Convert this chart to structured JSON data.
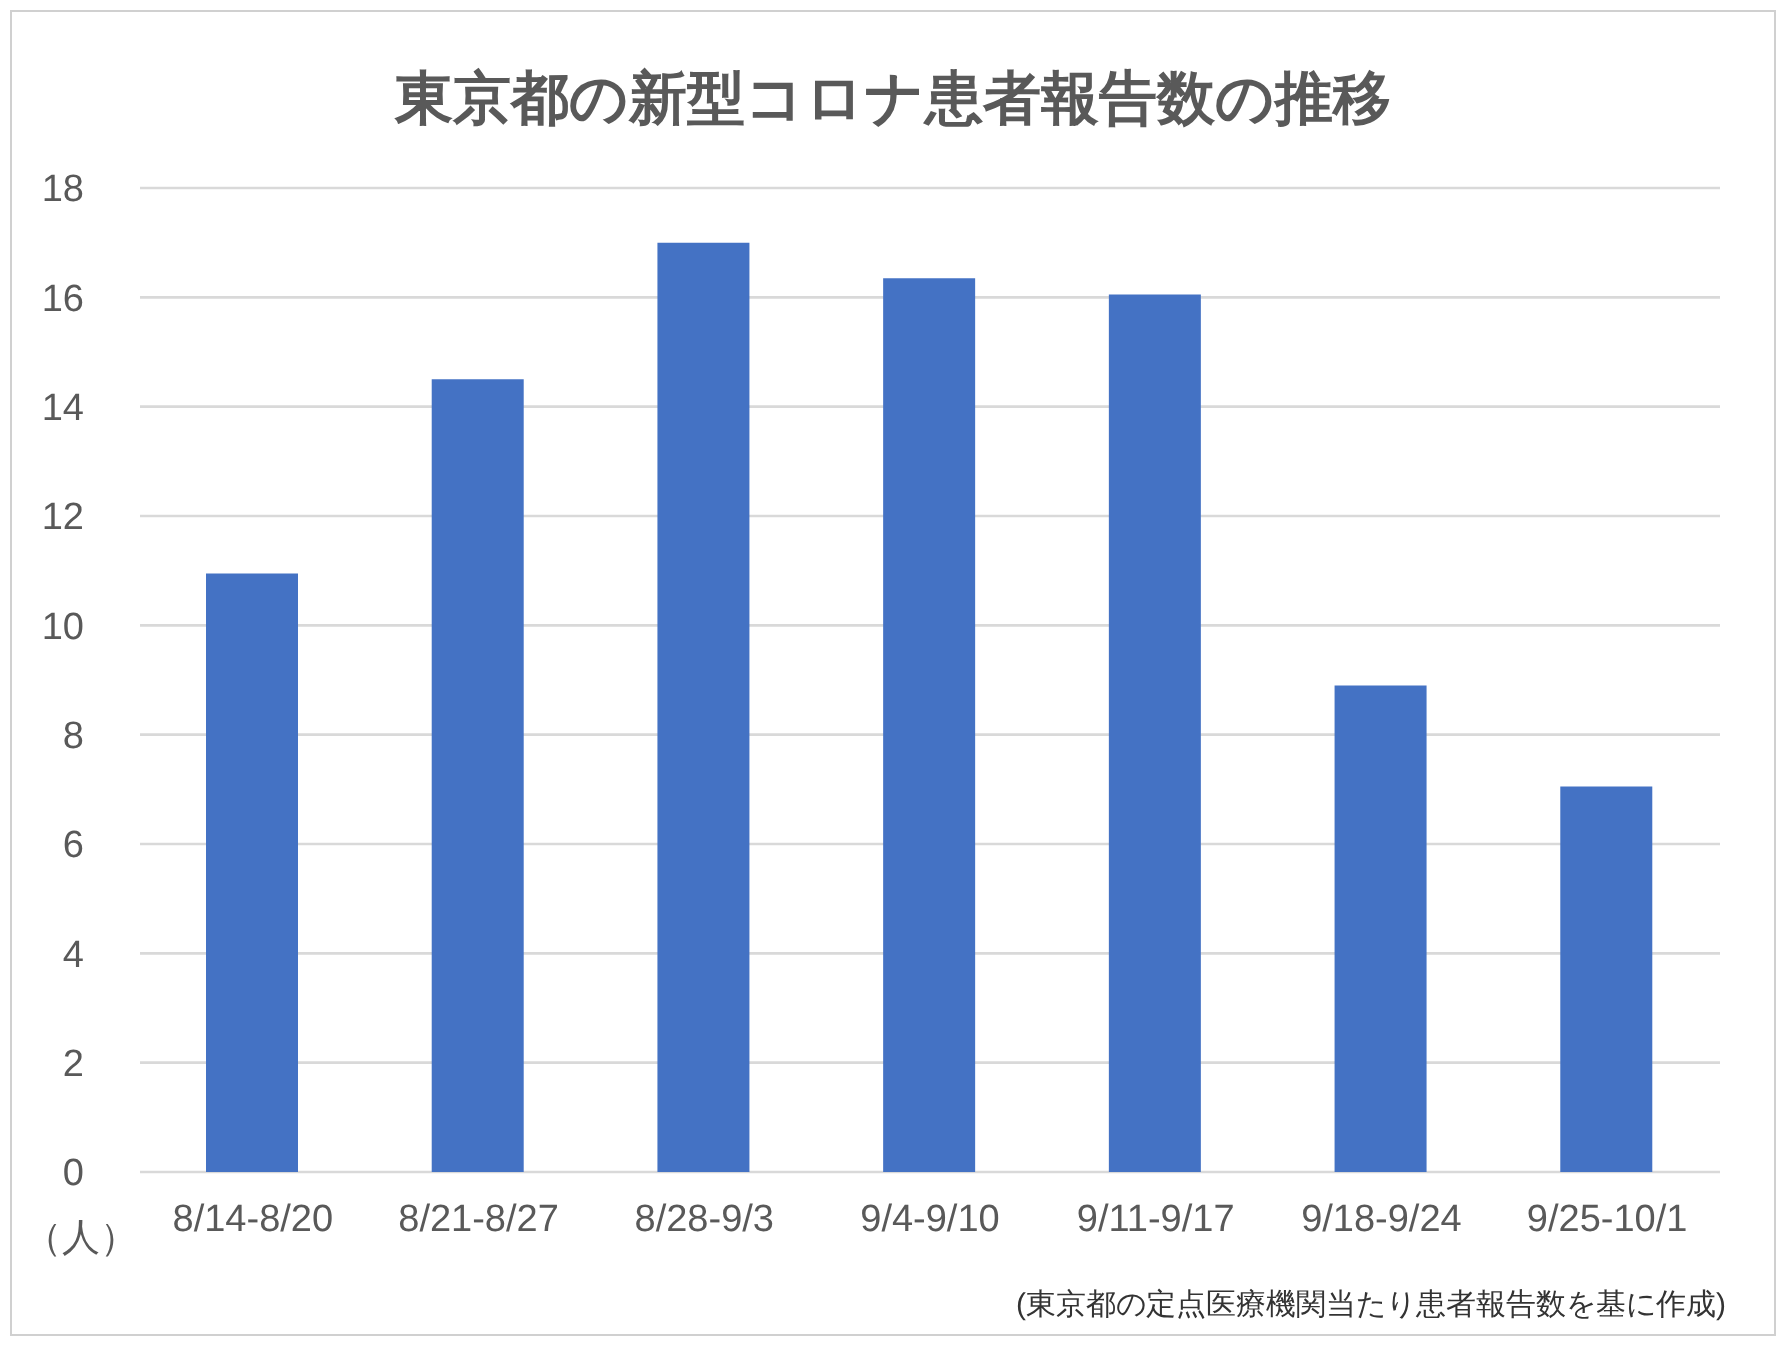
{
  "chart_data": {
    "type": "bar",
    "title": "東京都の新型コロナ患者報告数の推移",
    "ylabel": "（人）",
    "categories": [
      "8/14-8/20",
      "8/21-8/27",
      "8/28-9/3",
      "9/4-9/10",
      "9/11-9/17",
      "9/18-9/24",
      "9/25-10/1"
    ],
    "values": [
      10.95,
      14.5,
      17,
      16.35,
      16.05,
      8.9,
      7.05
    ],
    "color": "#4472c4",
    "ylim": [
      0,
      18
    ],
    "yticks": [
      0,
      2,
      4,
      6,
      8,
      10,
      12,
      14,
      16,
      18
    ],
    "grid": "y",
    "legend": false,
    "annotations": [
      "(東京都の定点医療機関当たり患者報告数を基に作成)"
    ]
  }
}
